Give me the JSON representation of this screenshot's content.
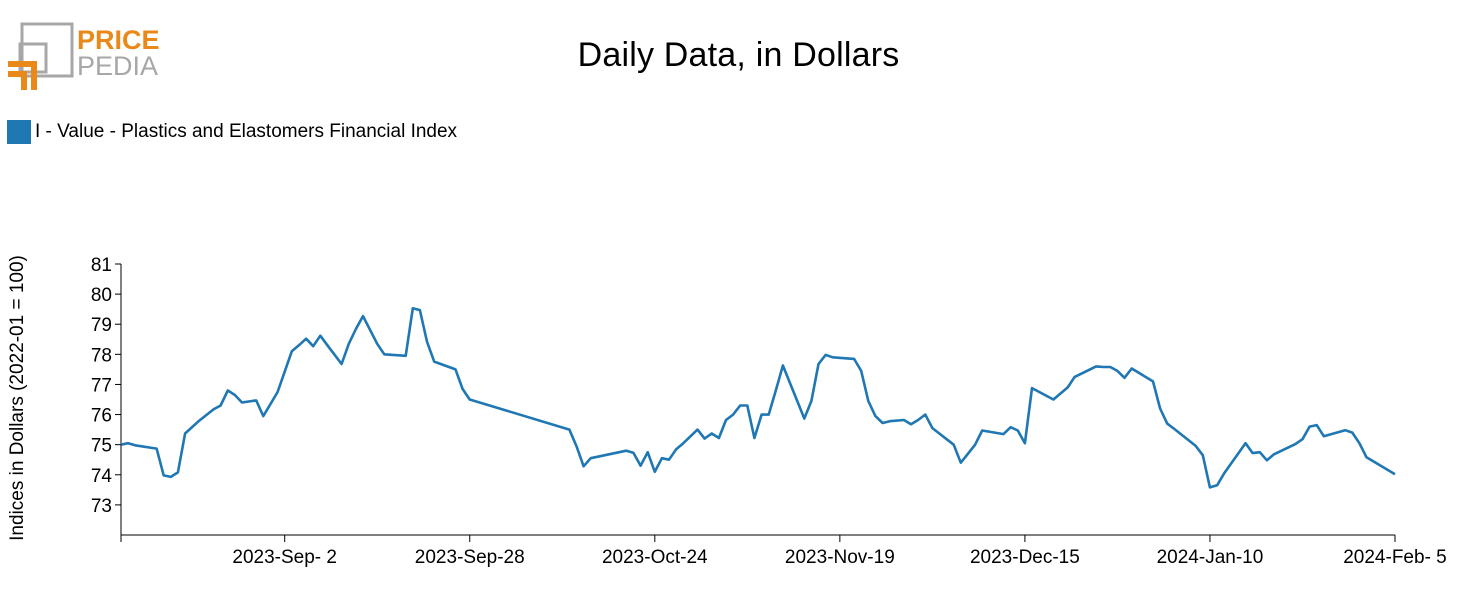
{
  "logo": {
    "line1": "PRICE",
    "line2": "PEDIA",
    "icon": "pricepedia-bracket-logo",
    "color_orange": "#e8891a",
    "color_gray": "#a7a7a7"
  },
  "chart_data": {
    "type": "line",
    "title": "Daily Data, in Dollars",
    "xlabel": "",
    "ylabel": "Indices in Dollars (2022-01 = 100)",
    "xlim": [
      "2023-08-10",
      "2024-02-05"
    ],
    "ylim": [
      72,
      81
    ],
    "yticks": [
      73,
      74,
      75,
      76,
      77,
      78,
      79,
      80,
      81
    ],
    "xtick_labels": [
      "2023-Sep- 2",
      "2023-Sep-28",
      "2023-Oct-24",
      "2023-Nov-19",
      "2023-Dec-15",
      "2024-Jan-10",
      "2024-Feb- 5"
    ],
    "xtick_dates": [
      "2023-09-02",
      "2023-09-28",
      "2023-10-24",
      "2023-11-19",
      "2023-12-15",
      "2024-01-10",
      "2024-02-05"
    ],
    "grid": false,
    "legend": "top-left",
    "series": [
      {
        "name": "I - Value - Plastics and Elastomers Financial Index",
        "color": "#1f77b4",
        "x": [
          "2023-08-10",
          "2023-08-11",
          "2023-08-12",
          "2023-08-15",
          "2023-08-16",
          "2023-08-17",
          "2023-08-18",
          "2023-08-19",
          "2023-08-21",
          "2023-08-23",
          "2023-08-24",
          "2023-08-25",
          "2023-08-26",
          "2023-08-27",
          "2023-08-29",
          "2023-08-30",
          "2023-08-31",
          "2023-09-01",
          "2023-09-03",
          "2023-09-04",
          "2023-09-05",
          "2023-09-06",
          "2023-09-07",
          "2023-09-08",
          "2023-09-10",
          "2023-09-11",
          "2023-09-12",
          "2023-09-13",
          "2023-09-15",
          "2023-09-16",
          "2023-09-19",
          "2023-09-20",
          "2023-09-21",
          "2023-09-22",
          "2023-09-23",
          "2023-09-26",
          "2023-09-27",
          "2023-09-28",
          "2023-10-12",
          "2023-10-13",
          "2023-10-14",
          "2023-10-15",
          "2023-10-19",
          "2023-10-20",
          "2023-10-21",
          "2023-10-22",
          "2023-10-23",
          "2023-10-24",
          "2023-10-25",
          "2023-10-26",
          "2023-10-27",
          "2023-10-28",
          "2023-10-30",
          "2023-10-31",
          "2023-11-01",
          "2023-11-02",
          "2023-11-03",
          "2023-11-04",
          "2023-11-05",
          "2023-11-06",
          "2023-11-07",
          "2023-11-08",
          "2023-11-09",
          "2023-11-10",
          "2023-11-11",
          "2023-11-14",
          "2023-11-15",
          "2023-11-16",
          "2023-11-17",
          "2023-11-18",
          "2023-11-21",
          "2023-11-22",
          "2023-11-23",
          "2023-11-24",
          "2023-11-25",
          "2023-11-26",
          "2023-11-28",
          "2023-11-29",
          "2023-11-30",
          "2023-12-01",
          "2023-12-02",
          "2023-12-05",
          "2023-12-06",
          "2023-12-07",
          "2023-12-08",
          "2023-12-09",
          "2023-12-12",
          "2023-12-13",
          "2023-12-14",
          "2023-12-15",
          "2023-12-16",
          "2023-12-19",
          "2023-12-20",
          "2023-12-21",
          "2023-12-22",
          "2023-12-25",
          "2023-12-26",
          "2023-12-27",
          "2023-12-28",
          "2023-12-29",
          "2023-12-30",
          "2024-01-02",
          "2024-01-03",
          "2024-01-04",
          "2024-01-05",
          "2024-01-08",
          "2024-01-09",
          "2024-01-10",
          "2024-01-11",
          "2024-01-12",
          "2024-01-15",
          "2024-01-16",
          "2024-01-17",
          "2024-01-18",
          "2024-01-19",
          "2024-01-22",
          "2024-01-23",
          "2024-01-24",
          "2024-01-25",
          "2024-01-26",
          "2024-01-29",
          "2024-01-30",
          "2024-01-31",
          "2024-02-01",
          "2024-02-05"
        ],
        "y": [
          75.0,
          75.05,
          74.98,
          74.87,
          73.98,
          73.93,
          74.08,
          75.37,
          75.8,
          76.17,
          76.3,
          76.8,
          76.65,
          76.4,
          76.47,
          75.95,
          76.35,
          76.75,
          78.1,
          78.3,
          78.52,
          78.27,
          78.62,
          78.3,
          77.68,
          78.35,
          78.84,
          79.27,
          78.35,
          78.0,
          77.95,
          79.53,
          79.47,
          78.42,
          77.76,
          77.5,
          76.85,
          76.5,
          75.5,
          74.95,
          74.28,
          74.55,
          74.75,
          74.8,
          74.73,
          74.3,
          74.75,
          74.1,
          74.55,
          74.5,
          74.85,
          75.05,
          75.5,
          75.2,
          75.37,
          75.22,
          75.82,
          76.0,
          76.3,
          76.3,
          75.22,
          76.0,
          76.0,
          76.8,
          77.63,
          75.87,
          76.45,
          77.68,
          77.98,
          77.9,
          77.85,
          77.45,
          76.45,
          75.95,
          75.72,
          75.78,
          75.82,
          75.68,
          75.82,
          76.0,
          75.55,
          75.0,
          74.4,
          74.7,
          75.0,
          75.47,
          75.35,
          75.58,
          75.47,
          75.05,
          76.88,
          76.5,
          76.7,
          76.9,
          77.25,
          77.6,
          77.58,
          77.58,
          77.45,
          77.22,
          77.53,
          77.1,
          76.2,
          75.7,
          75.52,
          74.96,
          74.65,
          73.58,
          73.65,
          74.05,
          75.05,
          74.72,
          74.75,
          74.48,
          74.68,
          75.02,
          75.18,
          75.6,
          75.65,
          75.28,
          75.48,
          75.4,
          75.05,
          74.58,
          74.02
        ]
      }
    ]
  }
}
